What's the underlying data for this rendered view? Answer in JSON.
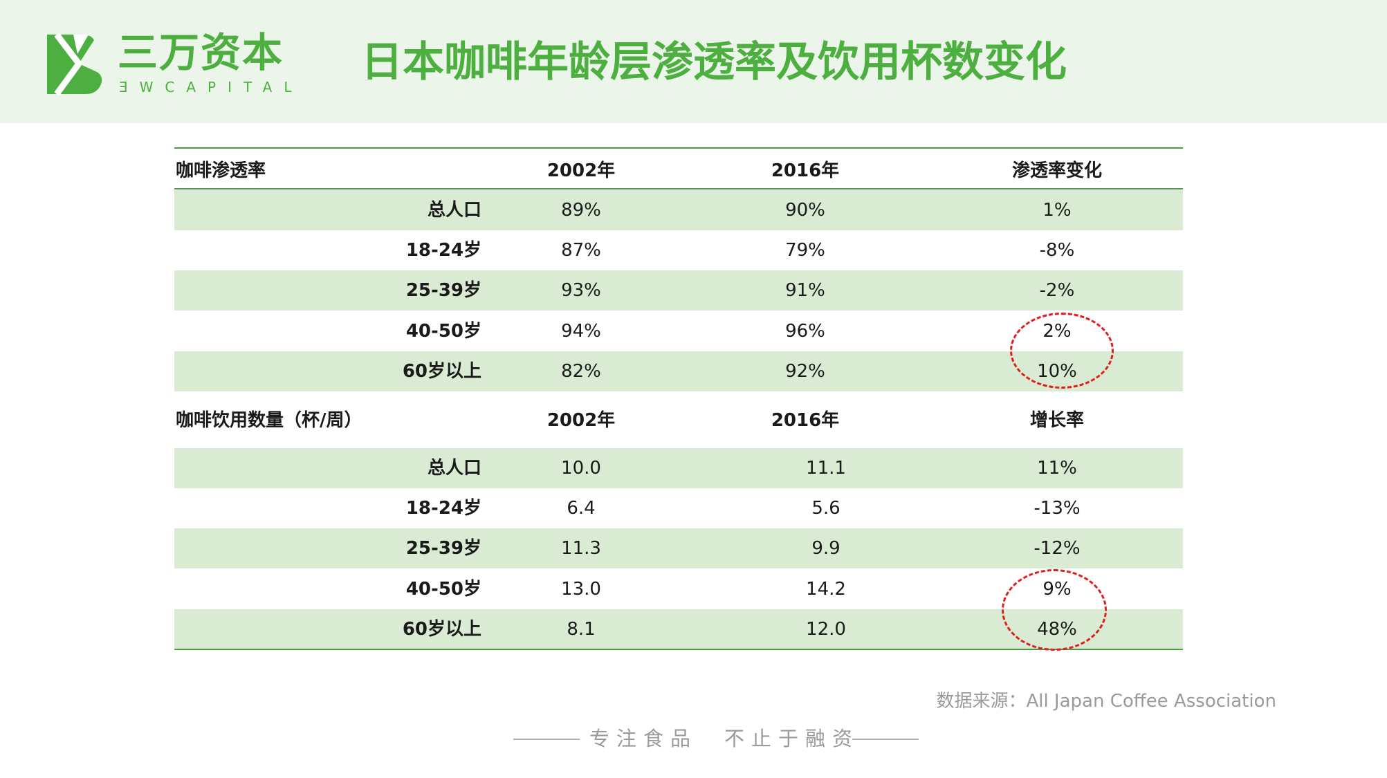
{
  "brand": {
    "name_cn": "三万资本",
    "name_en": "ƎWCAPITAL",
    "color": "#4caf3f"
  },
  "title": "日本咖啡年龄层渗透率及饮用杯数变化",
  "penetration_table": {
    "headers": [
      "咖啡渗透率",
      "2002年",
      "2016年",
      "渗透率变化"
    ],
    "rows": [
      [
        "总人口",
        "89%",
        "90%",
        "1%"
      ],
      [
        "18-24岁",
        "87%",
        "79%",
        "-8%"
      ],
      [
        "25-39岁",
        "93%",
        "91%",
        "-2%"
      ],
      [
        "40-50岁",
        "94%",
        "96%",
        "2%"
      ],
      [
        "60岁以上",
        "82%",
        "92%",
        "10%"
      ]
    ]
  },
  "cups_table": {
    "headers": [
      "咖啡饮用数量（杯/周）",
      "2002年",
      "2016年",
      "增长率"
    ],
    "rows": [
      [
        "总人口",
        "10.0",
        "11.1",
        "11%"
      ],
      [
        "18-24岁",
        "6.4",
        "5.6",
        "-13%"
      ],
      [
        "25-39岁",
        "11.3",
        "9.9",
        "-12%"
      ],
      [
        "40-50岁",
        "13.0",
        "14.2",
        "9%"
      ],
      [
        "60岁以上",
        "8.1",
        "12.0",
        "48%"
      ]
    ]
  },
  "source": "数据来源：All Japan Coffee Association",
  "slogan": "专注食品　不止于融资",
  "colors": {
    "header_bg": "#ecf5ea",
    "row_shade": "#d9ecd3",
    "rule": "#4a9a48",
    "highlight": "#e01e1e"
  }
}
